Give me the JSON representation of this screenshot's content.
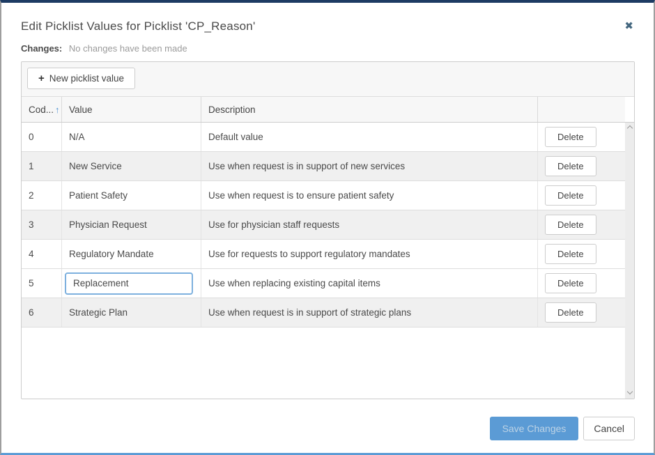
{
  "modal": {
    "title": "Edit Picklist Values for Picklist 'CP_Reason'",
    "close_icon": "✖",
    "changes_label": "Changes:",
    "changes_status": "No changes have been made"
  },
  "toolbar": {
    "plus_icon": "+",
    "new_value_label": "New picklist value"
  },
  "grid": {
    "columns": {
      "code_label": "Cod...",
      "code_sort_icon": "↑",
      "value_label": "Value",
      "description_label": "Description",
      "action_label": ""
    },
    "rows": [
      {
        "code": "0",
        "value": "N/A",
        "description": "Default value",
        "action": "Delete",
        "editing": false,
        "striped": false
      },
      {
        "code": "1",
        "value": "New Service",
        "description": "Use when request is in support of new services",
        "action": "Delete",
        "editing": false,
        "striped": true
      },
      {
        "code": "2",
        "value": "Patient Safety",
        "description": "Use when request is to ensure patient safety",
        "action": "Delete",
        "editing": false,
        "striped": false
      },
      {
        "code": "3",
        "value": "Physician Request",
        "description": "Use for physician staff requests",
        "action": "Delete",
        "editing": false,
        "striped": true
      },
      {
        "code": "4",
        "value": "Regulatory Mandate",
        "description": "Use for requests to support regulatory mandates",
        "action": "Delete",
        "editing": false,
        "striped": false
      },
      {
        "code": "5",
        "value": "Replacement",
        "description": "Use when replacing existing capital items",
        "action": "Delete",
        "editing": true,
        "striped": false
      },
      {
        "code": "6",
        "value": "Strategic Plan",
        "description": "Use when request is in support of strategic plans",
        "action": "Delete",
        "editing": false,
        "striped": true
      }
    ]
  },
  "footer": {
    "save_label": "Save Changes",
    "cancel_label": "Cancel"
  },
  "colors": {
    "accent_blue": "#5b9bd5",
    "navy_border": "#1d3b63",
    "stripe_gray": "#f0f0f0",
    "header_gray": "#f7f7f7"
  }
}
